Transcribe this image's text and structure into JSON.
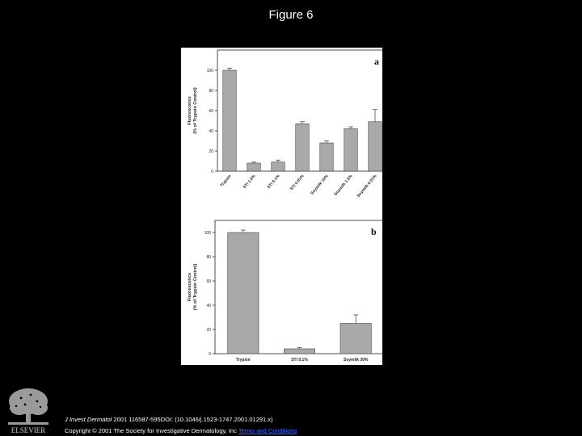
{
  "slide": {
    "title": "Figure 6"
  },
  "citation": {
    "journal": "J Invest Dermatol",
    "details": " 2001 116587-595DOI: (10.1046/j.1523-1747.2001.01291.x)",
    "copyright": "Copyright © 2001 The Society for Investigative Dermatology, Inc ",
    "terms_link": "Terms and Conditions"
  },
  "publisher": {
    "logo_text": "ELSEVIER",
    "logo_icon": "tree-logo-icon"
  },
  "chart_data": [
    {
      "type": "bar",
      "panel_label": "a",
      "ylabel": "Fluorescence\n(% of Trypsin Control)",
      "ylim": [
        0,
        120
      ],
      "yticks": [
        0,
        20,
        40,
        60,
        80,
        100
      ],
      "categories": [
        "Trypsin",
        "STI 1.0%",
        "STI 0.1%",
        "STI 0.01%",
        "Soymilk 10%",
        "Soymilk 1.0%",
        "Soymilk 0.01%"
      ],
      "values": [
        100,
        8,
        9,
        47,
        28,
        42,
        49
      ],
      "errors": [
        2,
        1,
        2,
        2,
        2,
        2,
        12
      ],
      "bar_color": "#a9a9a9"
    },
    {
      "type": "bar",
      "panel_label": "b",
      "ylabel": "Fluorescence\n(% of Trypsin Control)",
      "ylim": [
        0,
        110
      ],
      "yticks": [
        0,
        20,
        40,
        60,
        80,
        100
      ],
      "categories": [
        "Trypsin",
        "STI 0.1%",
        "Soymilk 30%"
      ],
      "values": [
        100,
        4,
        25
      ],
      "errors": [
        2,
        1,
        7
      ],
      "bar_color": "#a9a9a9"
    }
  ]
}
